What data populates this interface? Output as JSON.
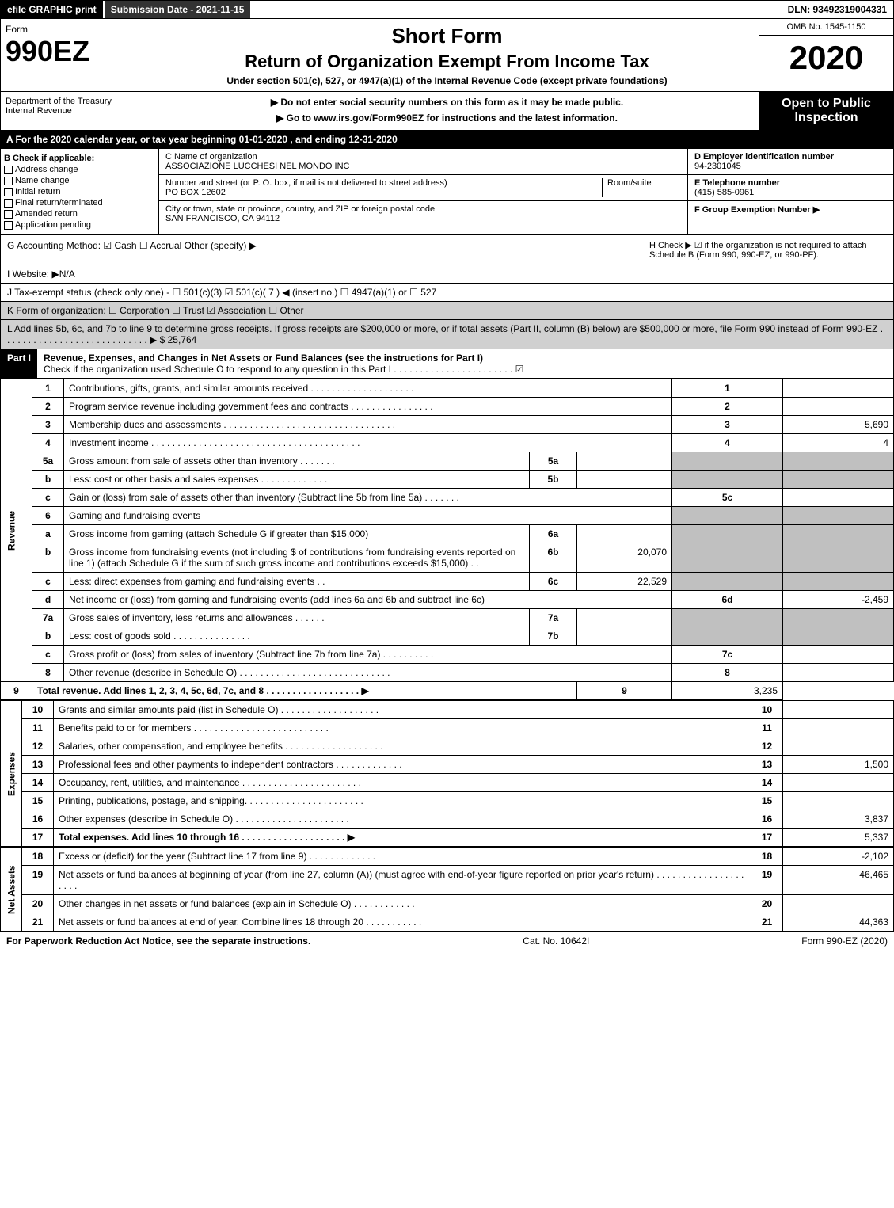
{
  "topbar": {
    "efile": "efile GRAPHIC print",
    "sub_date": "Submission Date - 2021-11-15",
    "dln": "DLN: 93492319004331"
  },
  "header": {
    "form_word": "Form",
    "form_no": "990EZ",
    "short_form": "Short Form",
    "main_title": "Return of Organization Exempt From Income Tax",
    "subtitle": "Under section 501(c), 527, or 4947(a)(1) of the Internal Revenue Code (except private foundations)",
    "omb": "OMB No. 1545-1150",
    "year": "2020",
    "no_ssn": "▶ Do not enter social security numbers on this form as it may be made public.",
    "goto": "▶ Go to www.irs.gov/Form990EZ for instructions and the latest information.",
    "dept": "Department of the Treasury",
    "irs": "Internal Revenue",
    "open": "Open to Public Inspection"
  },
  "cal": "A For the 2020 calendar year, or tax year beginning 01-01-2020 , and ending 12-31-2020",
  "b_col": {
    "title": "B  Check if applicable:",
    "items": [
      "Address change",
      "Name change",
      "Initial return",
      "Final return/terminated",
      "Amended return",
      "Application pending"
    ]
  },
  "c_col": {
    "name_label": "C Name of organization",
    "name": "ASSOCIAZIONE LUCCHESI NEL MONDO INC",
    "addr_label": "Number and street (or P. O. box, if mail is not delivered to street address)",
    "room_label": "Room/suite",
    "addr": "PO BOX 12602",
    "city_label": "City or town, state or province, country, and ZIP or foreign postal code",
    "city": "SAN FRANCISCO, CA  94112"
  },
  "d_col": {
    "ein_label": "D Employer identification number",
    "ein": "94-2301045",
    "tel_label": "E Telephone number",
    "tel": "(415) 585-0961",
    "grp_label": "F Group Exemption Number   ▶"
  },
  "g_line": "G Accounting Method:   ☑ Cash  ☐ Accrual   Other (specify) ▶",
  "h_line": "H  Check ▶ ☑ if the organization is not required to attach Schedule B (Form 990, 990-EZ, or 990-PF).",
  "i_line": "I Website: ▶N/A",
  "j_line": "J Tax-exempt status (check only one) - ☐ 501(c)(3) ☑ 501(c)( 7 ) ◀ (insert no.) ☐ 4947(a)(1) or ☐ 527",
  "k_line": "K Form of organization:   ☐ Corporation  ☐ Trust  ☑ Association  ☐ Other",
  "l_line": "L Add lines 5b, 6c, and 7b to line 9 to determine gross receipts. If gross receipts are $200,000 or more, or if total assets (Part II, column (B) below) are $500,000 or more, file Form 990 instead of Form 990-EZ . . . . . . . . . . . . . . . . . . . . . . . . . . . . ▶ $ 25,764",
  "part1": {
    "label": "Part I",
    "title": "Revenue, Expenses, and Changes in Net Assets or Fund Balances (see the instructions for Part I)",
    "check": "Check if the organization used Schedule O to respond to any question in this Part I . . . . . . . . . . . . . . . . . . . . . . . ☑"
  },
  "sections": {
    "revenue": "Revenue",
    "expenses": "Expenses",
    "netassets": "Net Assets"
  },
  "rows": [
    {
      "n": "1",
      "desc": "Contributions, gifts, grants, and similar amounts received . . . . . . . . . . . . . . . . . . . .",
      "num": "1",
      "val": ""
    },
    {
      "n": "2",
      "desc": "Program service revenue including government fees and contracts . . . . . . . . . . . . . . . .",
      "num": "2",
      "val": ""
    },
    {
      "n": "3",
      "desc": "Membership dues and assessments . . . . . . . . . . . . . . . . . . . . . . . . . . . . . . . . .",
      "num": "3",
      "val": "5,690"
    },
    {
      "n": "4",
      "desc": "Investment income . . . . . . . . . . . . . . . . . . . . . . . . . . . . . . . . . . . . . . . .",
      "num": "4",
      "val": "4"
    },
    {
      "n": "5a",
      "desc": "Gross amount from sale of assets other than inventory . . . . . . .",
      "sub": "5a",
      "subval": ""
    },
    {
      "n": "b",
      "desc": "Less: cost or other basis and sales expenses . . . . . . . . . . . . .",
      "sub": "5b",
      "subval": ""
    },
    {
      "n": "c",
      "desc": "Gain or (loss) from sale of assets other than inventory (Subtract line 5b from line 5a) . . . . . . .",
      "num": "5c",
      "val": ""
    },
    {
      "n": "6",
      "desc": "Gaming and fundraising events"
    },
    {
      "n": "a",
      "desc": "Gross income from gaming (attach Schedule G if greater than $15,000)",
      "sub": "6a",
      "subval": ""
    },
    {
      "n": "b",
      "desc": "Gross income from fundraising events (not including $                  of contributions from fundraising events reported on line 1) (attach Schedule G if the sum of such gross income and contributions exceeds $15,000)    .   .",
      "sub": "6b",
      "subval": "20,070"
    },
    {
      "n": "c",
      "desc": "Less: direct expenses from gaming and fundraising events    .   .",
      "sub": "6c",
      "subval": "22,529"
    },
    {
      "n": "d",
      "desc": "Net income or (loss) from gaming and fundraising events (add lines 6a and 6b and subtract line 6c)",
      "num": "6d",
      "val": "-2,459"
    },
    {
      "n": "7a",
      "desc": "Gross sales of inventory, less returns and allowances . . . . . .",
      "sub": "7a",
      "subval": ""
    },
    {
      "n": "b",
      "desc": "Less: cost of goods sold        . . . . . . . . . . . . . . .",
      "sub": "7b",
      "subval": ""
    },
    {
      "n": "c",
      "desc": "Gross profit or (loss) from sales of inventory (Subtract line 7b from line 7a) . . . . . . . . . .",
      "num": "7c",
      "val": ""
    },
    {
      "n": "8",
      "desc": "Other revenue (describe in Schedule O) . . . . . . . . . . . . . . . . . . . . . . . . . . . . .",
      "num": "8",
      "val": ""
    },
    {
      "n": "9",
      "desc": "Total revenue. Add lines 1, 2, 3, 4, 5c, 6d, 7c, and 8  . . . . . . . . . . . . . . . . . .  ▶",
      "num": "9",
      "val": "3,235",
      "bold": true
    }
  ],
  "exp_rows": [
    {
      "n": "10",
      "desc": "Grants and similar amounts paid (list in Schedule O) . . . . . . . . . . . . . . . . . . .",
      "num": "10",
      "val": ""
    },
    {
      "n": "11",
      "desc": "Benefits paid to or for members      . . . . . . . . . . . . . . . . . . . . . . . . . .",
      "num": "11",
      "val": ""
    },
    {
      "n": "12",
      "desc": "Salaries, other compensation, and employee benefits . . . . . . . . . . . . . . . . . . .",
      "num": "12",
      "val": ""
    },
    {
      "n": "13",
      "desc": "Professional fees and other payments to independent contractors . . . . . . . . . . . . .",
      "num": "13",
      "val": "1,500"
    },
    {
      "n": "14",
      "desc": "Occupancy, rent, utilities, and maintenance . . . . . . . . . . . . . . . . . . . . . . .",
      "num": "14",
      "val": ""
    },
    {
      "n": "15",
      "desc": "Printing, publications, postage, and shipping. . . . . . . . . . . . . . . . . . . . . . .",
      "num": "15",
      "val": ""
    },
    {
      "n": "16",
      "desc": "Other expenses (describe in Schedule O)     . . . . . . . . . . . . . . . . . . . . . .",
      "num": "16",
      "val": "3,837"
    },
    {
      "n": "17",
      "desc": "Total expenses. Add lines 10 through 16     . . . . . . . . . . . . . . . . . . . .  ▶",
      "num": "17",
      "val": "5,337",
      "bold": true
    }
  ],
  "na_rows": [
    {
      "n": "18",
      "desc": "Excess or (deficit) for the year (Subtract line 17 from line 9)        . . . . . . . . . . . . .",
      "num": "18",
      "val": "-2,102"
    },
    {
      "n": "19",
      "desc": "Net assets or fund balances at beginning of year (from line 27, column (A)) (must agree with end-of-year figure reported on prior year's return) . . . . . . . . . . . . . . . . . . . . .",
      "num": "19",
      "val": "46,465"
    },
    {
      "n": "20",
      "desc": "Other changes in net assets or fund balances (explain in Schedule O) . . . . . . . . . . . .",
      "num": "20",
      "val": ""
    },
    {
      "n": "21",
      "desc": "Net assets or fund balances at end of year. Combine lines 18 through 20 . . . . . . . . . . .",
      "num": "21",
      "val": "44,363"
    }
  ],
  "footer": {
    "left": "For Paperwork Reduction Act Notice, see the separate instructions.",
    "mid": "Cat. No. 10642I",
    "right": "Form 990-EZ (2020)"
  }
}
